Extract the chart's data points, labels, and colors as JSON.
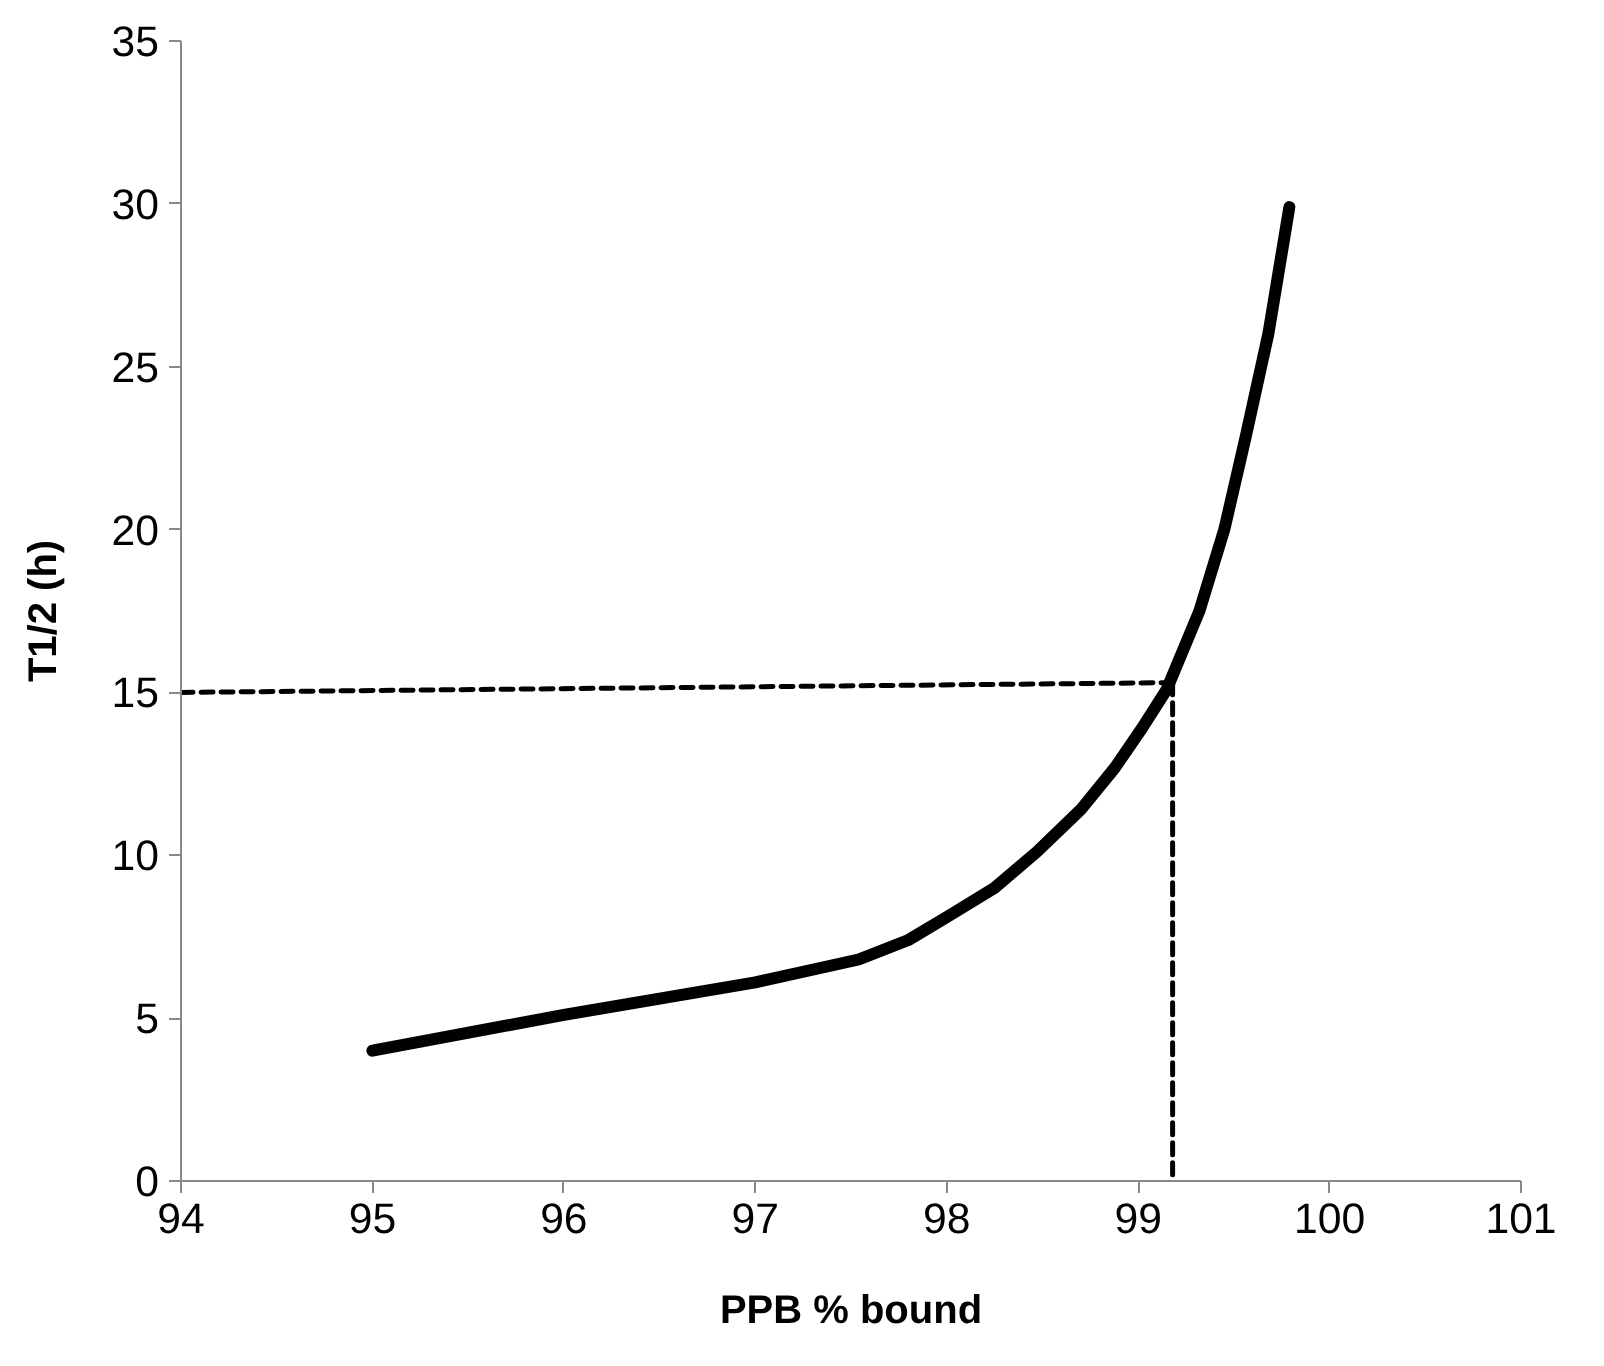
{
  "chart_data": {
    "type": "line",
    "xlabel": "PPB % bound",
    "ylabel": "T1/2 (h)",
    "xlim": [
      94,
      101
    ],
    "xticks": [
      94,
      95,
      96,
      97,
      98,
      99,
      100,
      101
    ],
    "ylim": [
      0,
      35
    ],
    "yticks": [
      0,
      5,
      10,
      15,
      20,
      25,
      30,
      35
    ],
    "grid": false,
    "marker": "none",
    "series": [
      {
        "color": "#000000",
        "line_style": "solid",
        "x": [
          95,
          96,
          97,
          97.54,
          97.8,
          98,
          98.25,
          98.47,
          98.7,
          98.88,
          99.02,
          99.15,
          99.32,
          99.45,
          99.56,
          99.68,
          99.79
        ],
        "values": [
          4.0,
          5.1,
          6.1,
          6.8,
          7.4,
          8.1,
          9.0,
          10.1,
          11.4,
          12.7,
          13.9,
          15.1,
          17.5,
          20.0,
          22.8,
          26.0,
          29.9
        ]
      },
      {
        "color": "#000000",
        "line_style": "dashed",
        "x": [
          94,
          99.18
        ],
        "values": [
          15,
          15.3
        ]
      },
      {
        "color": "#000000",
        "line_style": "dashed",
        "x": [
          99.18,
          99.18
        ],
        "values": [
          15.3,
          0
        ]
      }
    ]
  }
}
